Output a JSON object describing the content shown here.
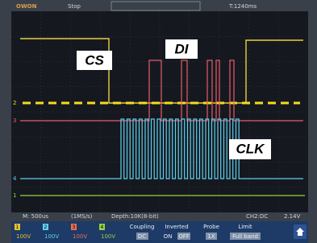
{
  "header": {
    "brand": "OWON",
    "status": "Stop",
    "trigger_time": "T:1240ms"
  },
  "annotations": {
    "cs": "CS",
    "di": "DI",
    "clk": "CLK"
  },
  "status_bar": {
    "timebase": "M: 500us",
    "sample_rate": "(1MS/s)",
    "depth": "Depth:10K(8-bit)",
    "trigger": "CH2:DC",
    "trigger_level": "2.14V"
  },
  "channels": [
    {
      "number": "1",
      "scale": "100V"
    },
    {
      "number": "2",
      "scale": "100V"
    },
    {
      "number": "3",
      "scale": "100V"
    },
    {
      "number": "4",
      "scale": "100V"
    }
  ],
  "menu": [
    {
      "label": "Coupling",
      "value": "DC"
    },
    {
      "label": "Inverted",
      "on": "ON",
      "off": "OFF"
    },
    {
      "label": "Probe",
      "value": "1X"
    },
    {
      "label": "Limit",
      "value": "Full band"
    }
  ]
}
